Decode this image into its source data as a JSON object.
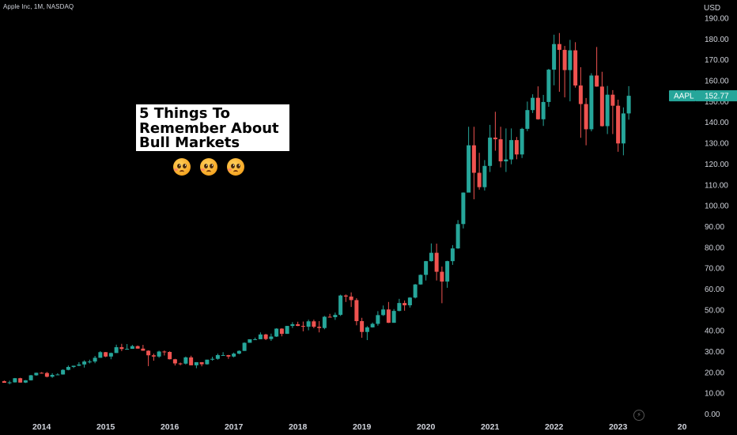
{
  "header": {
    "symbol_line": "Apple Inc, 1M, NASDAQ"
  },
  "note": {
    "lines": [
      "5 Things To",
      "Remember About",
      "Bull Markets"
    ]
  },
  "emoji_icons": [
    "pleading-face-icon",
    "pleading-face-icon",
    "pleading-face-icon"
  ],
  "colors": {
    "up": "#26a69a",
    "down": "#ef5350",
    "background": "#000000",
    "axis_text": "#d1d4dc",
    "last_price_badge": "#26a69a"
  },
  "chart_data": {
    "type": "candlestick",
    "title": "Apple Inc, 1M, NASDAQ",
    "ylabel": "USD",
    "ylim": [
      0,
      195
    ],
    "yticks": [
      "0.00",
      "10.00",
      "20.00",
      "30.00",
      "40.00",
      "50.00",
      "60.00",
      "70.00",
      "80.00",
      "90.00",
      "100.00",
      "110.00",
      "120.00",
      "130.00",
      "140.00",
      "150.00",
      "160.00",
      "170.00",
      "180.00",
      "190.00"
    ],
    "xticks": [
      "2014",
      "2015",
      "2016",
      "2017",
      "2018",
      "2019",
      "2020",
      "2021",
      "2022",
      "2023",
      "20"
    ],
    "start": "2013-06",
    "interval": "1M",
    "candles": [
      [
        15.8,
        16.1,
        15.0,
        15.0
      ],
      [
        15.0,
        16.0,
        14.3,
        15.2
      ],
      [
        15.2,
        17.3,
        15.1,
        17.2
      ],
      [
        17.2,
        17.4,
        15.3,
        15.1
      ],
      [
        15.1,
        16.3,
        14.9,
        16.2
      ],
      [
        16.2,
        18.8,
        16.1,
        18.6
      ],
      [
        18.6,
        19.9,
        18.4,
        19.8
      ],
      [
        19.8,
        20.1,
        19.4,
        19.7
      ],
      [
        19.7,
        20.2,
        17.6,
        17.9
      ],
      [
        17.9,
        19.6,
        17.4,
        18.8
      ],
      [
        18.8,
        19.6,
        18.8,
        19.0
      ],
      [
        19.0,
        21.5,
        18.9,
        21.2
      ],
      [
        21.2,
        23.3,
        21.0,
        22.6
      ],
      [
        22.6,
        23.2,
        22.1,
        23.2
      ],
      [
        23.2,
        24.9,
        23.0,
        23.8
      ],
      [
        23.8,
        25.8,
        22.3,
        25.2
      ],
      [
        25.2,
        26.1,
        24.3,
        25.2
      ],
      [
        25.2,
        27.9,
        24.4,
        27.0
      ],
      [
        27.0,
        30.2,
        27.0,
        29.7
      ],
      [
        29.7,
        29.8,
        27.3,
        27.6
      ],
      [
        27.6,
        29.5,
        26.3,
        29.3
      ],
      [
        29.3,
        33.3,
        29.3,
        32.1
      ],
      [
        32.1,
        33.7,
        30.2,
        31.2
      ],
      [
        31.2,
        33.6,
        30.9,
        31.3
      ],
      [
        31.3,
        33.2,
        31.3,
        32.6
      ],
      [
        32.6,
        32.9,
        31.4,
        31.4
      ],
      [
        31.4,
        33.2,
        30.4,
        30.4
      ],
      [
        30.4,
        30.6,
        23.0,
        28.2
      ],
      [
        28.2,
        29.0,
        25.6,
        27.6
      ],
      [
        27.6,
        30.4,
        27.0,
        30.0
      ],
      [
        30.0,
        30.5,
        28.1,
        29.8
      ],
      [
        29.8,
        30.1,
        26.2,
        26.3
      ],
      [
        26.3,
        26.5,
        23.3,
        24.3
      ],
      [
        24.3,
        24.7,
        23.4,
        24.2
      ],
      [
        24.2,
        27.6,
        23.8,
        27.2
      ],
      [
        27.2,
        28.0,
        23.4,
        23.4
      ],
      [
        23.4,
        23.6,
        22.0,
        24.9
      ],
      [
        24.9,
        24.8,
        22.9,
        23.9
      ],
      [
        23.9,
        26.0,
        23.7,
        26.1
      ],
      [
        26.1,
        27.5,
        25.6,
        26.5
      ],
      [
        26.5,
        29.0,
        26.1,
        28.3
      ],
      [
        28.3,
        29.7,
        28.0,
        28.3
      ],
      [
        28.3,
        28.4,
        26.5,
        27.6
      ],
      [
        27.6,
        29.5,
        27.2,
        29.0
      ],
      [
        29.0,
        30.6,
        28.7,
        30.3
      ],
      [
        30.3,
        34.4,
        30.3,
        34.2
      ],
      [
        34.2,
        35.6,
        34.2,
        35.9
      ],
      [
        35.9,
        36.7,
        35.5,
        35.9
      ],
      [
        35.9,
        39.2,
        35.9,
        38.2
      ],
      [
        38.2,
        38.5,
        35.5,
        36.0
      ],
      [
        36.0,
        38.6,
        35.1,
        37.2
      ],
      [
        37.2,
        41.2,
        37.0,
        41.0
      ],
      [
        41.0,
        41.2,
        37.3,
        38.5
      ],
      [
        38.5,
        42.3,
        38.5,
        42.3
      ],
      [
        42.3,
        44.1,
        41.3,
        43.1
      ],
      [
        43.1,
        44.3,
        42.2,
        42.3
      ],
      [
        42.3,
        44.4,
        39.7,
        41.9
      ],
      [
        41.9,
        45.3,
        40.2,
        44.5
      ],
      [
        44.5,
        45.3,
        41.2,
        41.9
      ],
      [
        41.9,
        44.6,
        39.2,
        41.3
      ],
      [
        41.3,
        47.1,
        40.7,
        46.7
      ],
      [
        46.7,
        48.1,
        46.7,
        46.5
      ],
      [
        46.5,
        48.7,
        45.2,
        47.6
      ],
      [
        47.6,
        57.3,
        47.1,
        56.9
      ],
      [
        56.9,
        57.4,
        53.8,
        56.4
      ],
      [
        56.4,
        58.4,
        51.4,
        54.7
      ],
      [
        54.7,
        55.6,
        42.6,
        44.6
      ],
      [
        44.6,
        46.2,
        36.6,
        39.4
      ],
      [
        39.4,
        42.2,
        35.5,
        41.6
      ],
      [
        41.6,
        43.9,
        41.5,
        43.3
      ],
      [
        43.3,
        49.4,
        42.4,
        47.5
      ],
      [
        47.5,
        52.1,
        47.1,
        50.2
      ],
      [
        50.2,
        53.8,
        43.7,
        43.8
      ],
      [
        43.8,
        50.4,
        43.8,
        49.5
      ],
      [
        49.5,
        55.3,
        49.3,
        53.3
      ],
      [
        53.3,
        54.5,
        49.6,
        52.2
      ],
      [
        52.2,
        56.1,
        51.1,
        55.9
      ],
      [
        55.9,
        62.4,
        55.5,
        62.2
      ],
      [
        62.2,
        67.0,
        62.1,
        66.8
      ],
      [
        66.8,
        73.5,
        64.1,
        73.4
      ],
      [
        73.4,
        81.9,
        73.2,
        77.4
      ],
      [
        77.4,
        81.8,
        64.1,
        68.3
      ],
      [
        68.3,
        70.8,
        53.2,
        63.6
      ],
      [
        63.6,
        73.6,
        60.6,
        73.4
      ],
      [
        73.4,
        81.1,
        71.6,
        79.5
      ],
      [
        79.5,
        93.1,
        79.3,
        91.2
      ],
      [
        91.2,
        106.4,
        89.1,
        106.3
      ],
      [
        106.3,
        137.9,
        107.9,
        129.0
      ],
      [
        129.0,
        137.9,
        103.1,
        115.8
      ],
      [
        115.8,
        125.4,
        107.7,
        108.9
      ],
      [
        108.9,
        121.9,
        107.3,
        119.1
      ],
      [
        119.1,
        138.8,
        116.2,
        132.7
      ],
      [
        132.7,
        145.1,
        126.4,
        131.9
      ],
      [
        131.9,
        137.9,
        118.4,
        121.3
      ],
      [
        121.3,
        137.1,
        116.2,
        122.2
      ],
      [
        122.2,
        137.1,
        119.9,
        131.5
      ],
      [
        131.5,
        133.0,
        122.3,
        124.6
      ],
      [
        124.6,
        137.4,
        122.9,
        136.9
      ],
      [
        136.9,
        150.0,
        135.8,
        145.9
      ],
      [
        145.9,
        153.5,
        144.5,
        151.8
      ],
      [
        151.8,
        157.3,
        141.3,
        141.5
      ],
      [
        141.5,
        153.2,
        138.3,
        149.8
      ],
      [
        149.8,
        165.7,
        147.5,
        165.3
      ],
      [
        165.3,
        182.1,
        157.8,
        177.6
      ],
      [
        177.6,
        182.9,
        154.7,
        174.8
      ],
      [
        174.8,
        176.7,
        152.0,
        165.1
      ],
      [
        165.1,
        179.6,
        150.1,
        174.6
      ],
      [
        174.6,
        178.5,
        156.7,
        157.7
      ],
      [
        157.7,
        166.5,
        132.6,
        148.8
      ],
      [
        148.8,
        151.7,
        129.0,
        136.7
      ],
      [
        136.7,
        163.6,
        135.7,
        162.5
      ],
      [
        162.5,
        176.2,
        157.1,
        157.2
      ],
      [
        157.2,
        164.3,
        138.0,
        138.2
      ],
      [
        138.2,
        157.5,
        134.4,
        153.3
      ],
      [
        153.3,
        155.5,
        134.4,
        148.0
      ],
      [
        148.0,
        150.9,
        125.9,
        129.9
      ],
      [
        129.9,
        147.2,
        124.2,
        144.3
      ],
      [
        144.3,
        157.4,
        141.3,
        152.77
      ]
    ],
    "last_price": {
      "symbol": "AAPL",
      "value": "152.77"
    }
  }
}
